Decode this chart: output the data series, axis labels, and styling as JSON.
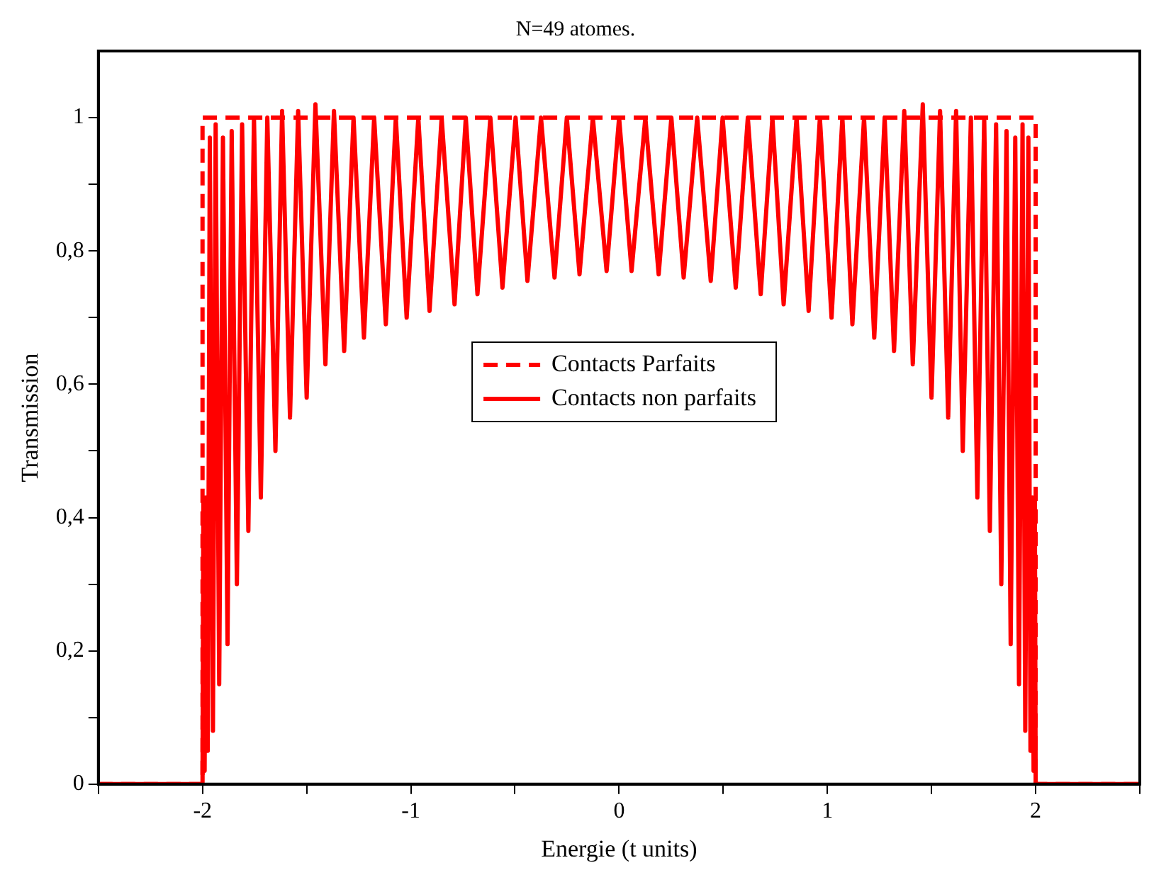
{
  "chart_data": {
    "type": "line",
    "title": "N=49 atomes.",
    "xlabel": "Energie (t units)",
    "ylabel": "Transmission",
    "xlim": [
      -2.5,
      2.5
    ],
    "xticks": [
      {
        "value": -2.5,
        "label": null
      },
      -2,
      {
        "value": -1.5,
        "label": null
      },
      -1,
      {
        "value": -0.5,
        "label": null
      },
      0,
      {
        "value": 0.5,
        "label": null
      },
      1,
      {
        "value": 1.5,
        "label": null
      },
      2,
      {
        "value": 2.5,
        "label": null
      }
    ],
    "ylim": [
      0,
      1.1
    ],
    "yticks": [
      0,
      {
        "value": 0.1,
        "label": null
      },
      {
        "value": 0.2,
        "label": "0,2"
      },
      {
        "value": 0.3,
        "label": null
      },
      {
        "value": 0.4,
        "label": "0,4"
      },
      {
        "value": 0.5,
        "label": null
      },
      {
        "value": 0.6,
        "label": "0,6"
      },
      {
        "value": 0.7,
        "label": null
      },
      {
        "value": 0.8,
        "label": "0,8"
      },
      {
        "value": 0.9,
        "label": null
      },
      1
    ],
    "grid": false,
    "legend": "center",
    "marker": "none",
    "series": [
      {
        "name": "Contacts Parfaits",
        "color": "#ff0000",
        "line_style": "dashed",
        "x": [
          -2.5,
          -2,
          -2,
          2,
          2,
          2.5
        ],
        "values": [
          0,
          0,
          1,
          1,
          0,
          0
        ]
      },
      {
        "name": "Contacts non parfaits",
        "color": "#ff0000",
        "line_style": "solid",
        "x": [
          -2.5,
          -2.0,
          -1.996,
          -1.99,
          -1.984,
          -1.975,
          -1.965,
          -1.95,
          -1.937,
          -1.92,
          -1.902,
          -1.88,
          -1.86,
          -1.835,
          -1.81,
          -1.78,
          -1.753,
          -1.72,
          -1.689,
          -1.65,
          -1.618,
          -1.58,
          -1.541,
          -1.5,
          -1.458,
          -1.41,
          -1.369,
          -1.32,
          -1.275,
          -1.225,
          -1.176,
          -1.12,
          -1.072,
          -1.02,
          -0.964,
          -0.91,
          -0.852,
          -0.79,
          -0.736,
          -0.68,
          -0.618,
          -0.56,
          -0.497,
          -0.44,
          -0.375,
          -0.31,
          -0.251,
          -0.19,
          -0.126,
          -0.06,
          0,
          0.06,
          0.126,
          0.19,
          0.251,
          0.31,
          0.375,
          0.44,
          0.497,
          0.56,
          0.618,
          0.68,
          0.736,
          0.79,
          0.852,
          0.91,
          0.964,
          1.02,
          1.072,
          1.12,
          1.176,
          1.225,
          1.275,
          1.32,
          1.369,
          1.41,
          1.458,
          1.5,
          1.541,
          1.58,
          1.618,
          1.65,
          1.689,
          1.72,
          1.753,
          1.78,
          1.81,
          1.835,
          1.86,
          1.88,
          1.902,
          1.92,
          1.937,
          1.95,
          1.965,
          1.975,
          1.984,
          1.99,
          1.996,
          2.0,
          2.5
        ],
        "values": [
          0,
          0,
          0.43,
          0.02,
          0.43,
          0.05,
          0.97,
          0.08,
          0.99,
          0.15,
          0.97,
          0.21,
          0.98,
          0.3,
          0.99,
          0.38,
          1.0,
          0.43,
          1.0,
          0.5,
          1.01,
          0.55,
          1.01,
          0.58,
          1.02,
          0.63,
          1.01,
          0.65,
          1.0,
          0.67,
          1.0,
          0.69,
          1.0,
          0.7,
          1.0,
          0.71,
          1.0,
          0.72,
          1.0,
          0.735,
          1.0,
          0.745,
          1.0,
          0.755,
          1.0,
          0.76,
          1.0,
          0.765,
          1.0,
          0.77,
          1.0,
          0.77,
          1.0,
          0.765,
          1.0,
          0.76,
          1.0,
          0.755,
          1.0,
          0.745,
          1.0,
          0.735,
          1.0,
          0.72,
          1.0,
          0.71,
          1.0,
          0.7,
          1.0,
          0.69,
          1.0,
          0.67,
          1.0,
          0.65,
          1.01,
          0.63,
          1.02,
          0.58,
          1.01,
          0.55,
          1.01,
          0.5,
          1.0,
          0.43,
          1.0,
          0.38,
          0.99,
          0.3,
          0.98,
          0.21,
          0.97,
          0.15,
          0.99,
          0.08,
          0.97,
          0.05,
          0.43,
          0.02,
          0.43,
          0,
          0
        ]
      }
    ]
  }
}
